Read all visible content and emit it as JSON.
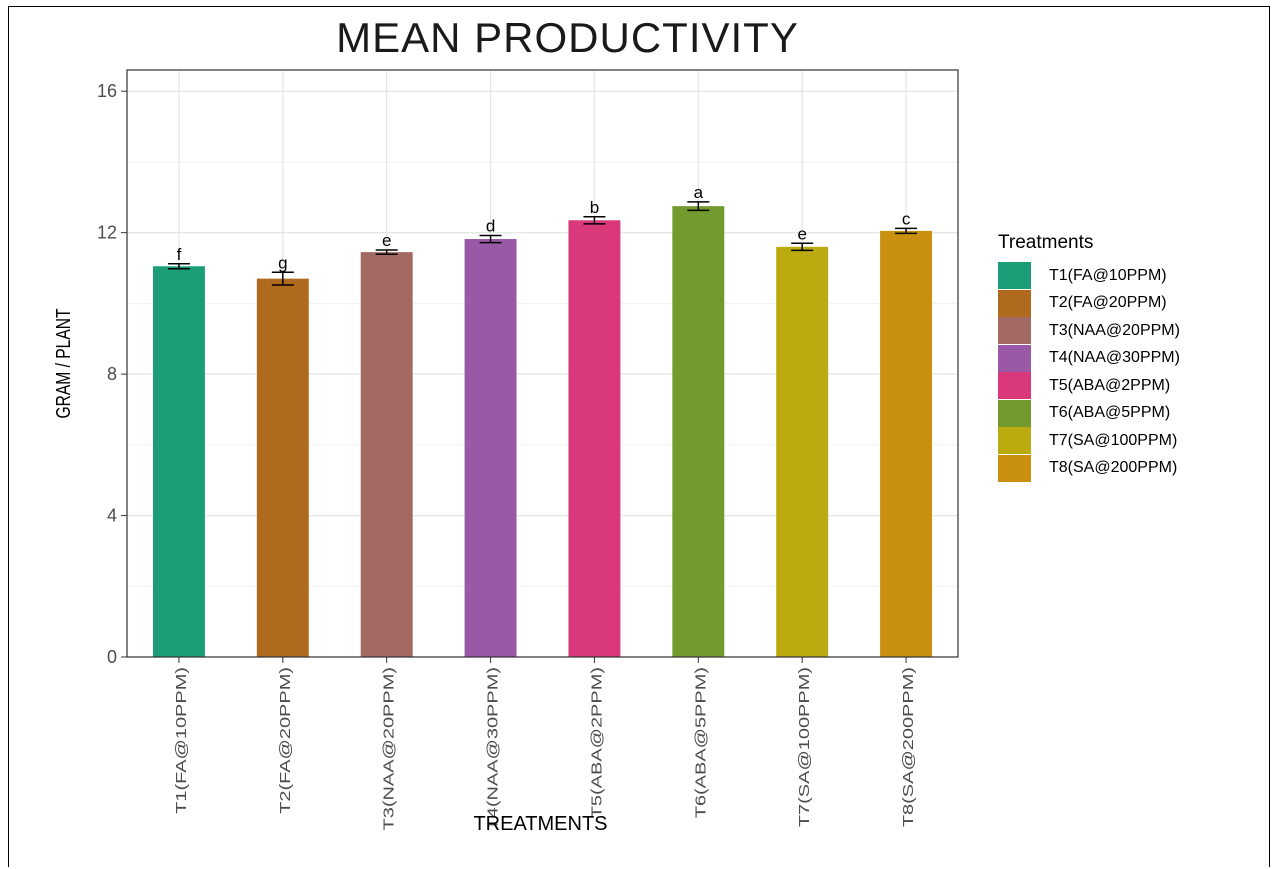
{
  "chart_data": {
    "type": "bar",
    "title": "MEAN PRODUCTIVITY",
    "xlabel": "TREATMENTS",
    "ylabel": "GRAM / PLANT",
    "ylim": [
      0,
      16.6
    ],
    "yticks": [
      0,
      4,
      8,
      12,
      16
    ],
    "grid": true,
    "legend_title": "Treatments",
    "legend_position": "right",
    "categories": [
      "T1(FA@10PPM)",
      "T2(FA@20PPM)",
      "T3(NAA@20PPM)",
      "T4(NAA@30PPM)",
      "T5(ABA@2PPM)",
      "T6(ABA@5PPM)",
      "T7(SA@100PPM)",
      "T8(SA@200PPM)"
    ],
    "values": [
      11.05,
      10.7,
      11.45,
      11.82,
      12.35,
      12.75,
      11.6,
      12.05
    ],
    "errors": [
      0.07,
      0.18,
      0.06,
      0.1,
      0.1,
      0.12,
      0.1,
      0.07
    ],
    "significance_letters": [
      "f",
      "g",
      "e",
      "d",
      "b",
      "a",
      "e",
      "c"
    ],
    "colors": [
      "#1b9e77",
      "#b06a1e",
      "#a26a63",
      "#9a59a6",
      "#d9387a",
      "#739a2e",
      "#bcaa11",
      "#c9900f"
    ]
  }
}
